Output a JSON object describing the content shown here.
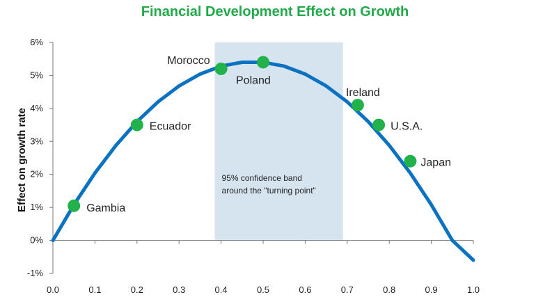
{
  "chart_data": {
    "type": "line",
    "title": "Financial Development Effect on Growth",
    "ylabel": "Effect on growth rate",
    "xlabel": "",
    "xlim": [
      0.0,
      1.0
    ],
    "ylim": [
      -1,
      6
    ],
    "x_ticks": [
      "0.0",
      "0.1",
      "0.2",
      "0.3",
      "0.4",
      "0.5",
      "0.6",
      "0.7",
      "0.8",
      "0.9",
      "1.0"
    ],
    "y_ticks": [
      "-1%",
      "0%",
      "1%",
      "2%",
      "3%",
      "4%",
      "5%",
      "6%"
    ],
    "grid": false,
    "series": [
      {
        "color": "#0b72c1",
        "x": [
          0.0,
          0.05,
          0.1,
          0.15,
          0.2,
          0.25,
          0.3,
          0.35,
          0.4,
          0.45,
          0.5,
          0.55,
          0.6,
          0.65,
          0.7,
          0.75,
          0.8,
          0.85,
          0.9,
          0.95,
          1.0
        ],
        "y": [
          0.0,
          1.08,
          2.04,
          2.88,
          3.6,
          4.2,
          4.68,
          5.04,
          5.28,
          5.4,
          5.4,
          5.28,
          5.04,
          4.68,
          4.2,
          3.6,
          2.88,
          2.04,
          1.08,
          0.0,
          -0.6
        ]
      }
    ],
    "points": [
      {
        "label": "Gambia",
        "x": 0.05,
        "y": 1.05
      },
      {
        "label": "Ecuador",
        "x": 0.2,
        "y": 3.5
      },
      {
        "label": "Morocco",
        "x": 0.4,
        "y": 5.2
      },
      {
        "label": "Poland",
        "x": 0.5,
        "y": 5.4
      },
      {
        "label": "Ireland",
        "x": 0.725,
        "y": 4.1
      },
      {
        "label": "U.S.A.",
        "x": 0.775,
        "y": 3.5
      },
      {
        "label": "Japan",
        "x": 0.85,
        "y": 2.4
      }
    ],
    "point_color": "#22b24c",
    "confidence_band": {
      "x_range": [
        0.385,
        0.69
      ],
      "label_lines": [
        "95%  confidence band",
        "around the \"turning point\""
      ],
      "color": "#d6e4f0"
    }
  }
}
